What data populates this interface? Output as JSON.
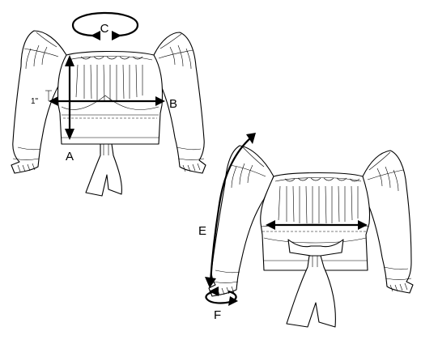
{
  "labels": {
    "a": "A",
    "b": "B",
    "c": "C",
    "e": "E",
    "f": "F",
    "offset": "1\""
  }
}
